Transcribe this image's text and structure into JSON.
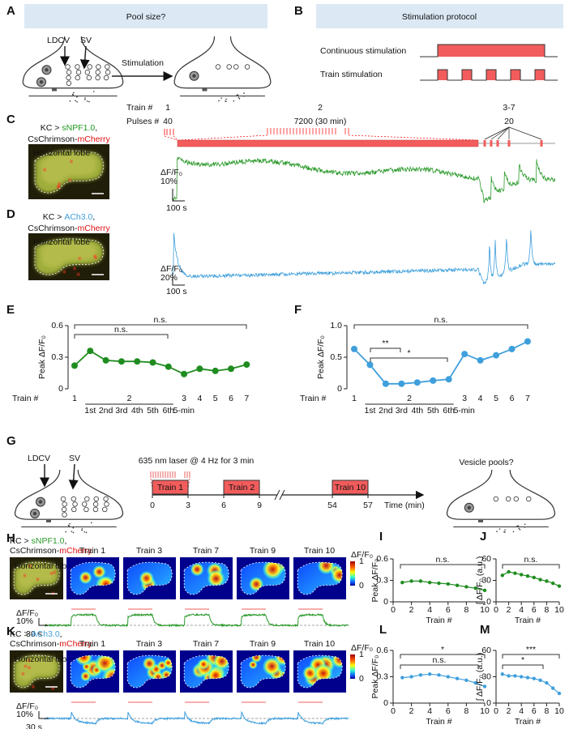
{
  "panel_a": {
    "label": "A",
    "title": "Pool size?",
    "ldcv": "LDCV",
    "sv": "SV",
    "arrow_label": "Stimulation"
  },
  "panel_b": {
    "label": "B",
    "title": "Stimulation protocol",
    "continuous": "Continuous stimulation",
    "train": "Train stimulation"
  },
  "panel_c": {
    "label": "C",
    "train_header": "Train #",
    "pulses_header": "Pulses #",
    "trains": [
      "1",
      "2",
      "3-7"
    ],
    "pulses": [
      "40",
      "7200 (30 min)",
      "20"
    ],
    "genotype": {
      "driver": "KC >",
      "sensor": "sNPF1.0",
      "sep": ",",
      "effector": "CsChrimson-",
      "tag": "mCherry"
    },
    "region": "Horizontal lobe",
    "scale_y_label": "ΔF/F₀",
    "scale_y": "10%",
    "scale_x": "100 s"
  },
  "panel_d": {
    "label": "D",
    "genotype": {
      "driver": "KC >",
      "sensor": "ACh3.0",
      "sep": ",",
      "effector": "CsChrimson-",
      "tag": "mCherry"
    },
    "region": "Horizontal lobe",
    "scale_y_label": "ΔF/F₀",
    "scale_y": "20%",
    "scale_x": "100 s"
  },
  "panel_g": {
    "label": "G",
    "ldcv": "LDCV",
    "sv": "SV",
    "laser": "635 nm laser @ 4 Hz for 3 min",
    "trains": [
      "Train 1",
      "Train 2",
      "Train 10"
    ],
    "time_ticks": [
      0,
      3,
      6,
      9,
      54,
      57
    ],
    "time_label": "Time (min)",
    "question": "Vesicle pools?"
  },
  "panel_h": {
    "label": "H",
    "genotype": {
      "driver": "KC >",
      "sensor": "sNPF1.0",
      "sep": ",",
      "effector": "CsChrimson-",
      "tag": "mCherry"
    },
    "region": "Horizontal lobe",
    "images": [
      "Train 1",
      "Train 3",
      "Train 7",
      "Train 9",
      "Train 10"
    ],
    "colorbar_label": "ΔF/F₀",
    "colorbar_ticks": [
      0,
      1
    ],
    "scale_y_label": "ΔF/F₀",
    "scale_y": "10%",
    "scale_x": "30 s"
  },
  "panel_k": {
    "label": "K",
    "genotype": {
      "driver": "KC >",
      "sensor": "ACh3.0",
      "sep": ",",
      "effector": "CsChrimson-",
      "tag": "mCherry"
    },
    "region": "Horizontal lobe",
    "images": [
      "Train 1",
      "Train 3",
      "Train 7",
      "Train 9",
      "Train 10"
    ],
    "colorbar_label": "ΔF/F₀",
    "colorbar_ticks": [
      0,
      1
    ],
    "scale_y_label": "ΔF/F₀",
    "scale_y": "10%",
    "scale_x": "30 s"
  },
  "chart_data": [
    {
      "type": "line",
      "panel_label": "E",
      "ylabel": "Peak ΔF/F₀",
      "xlabel": "Train #",
      "categories": [
        "1",
        "1st",
        "2nd",
        "3rd",
        "4th",
        "5th",
        "6th",
        "3",
        "4",
        "5",
        "6",
        "7"
      ],
      "group_label": "2",
      "gap_label": "5-min",
      "values": [
        0.22,
        0.36,
        0.27,
        0.26,
        0.26,
        0.25,
        0.21,
        0.14,
        0.19,
        0.17,
        0.19,
        0.23
      ],
      "color": "#1f8c1f",
      "ylim": [
        0,
        0.6
      ],
      "yticks": [
        0,
        0.3,
        0.6
      ],
      "annotations": [
        "n.s.",
        "n.s."
      ]
    },
    {
      "type": "line",
      "panel_label": "F",
      "ylabel": "Peak ΔF/F₀",
      "xlabel": "Train #",
      "categories": [
        "1",
        "1st",
        "2nd",
        "3rd",
        "4th",
        "5th",
        "6th",
        "3",
        "4",
        "5",
        "6",
        "7"
      ],
      "group_label": "2",
      "gap_label": "5-min",
      "values": [
        0.63,
        0.38,
        0.08,
        0.08,
        0.1,
        0.13,
        0.15,
        0.55,
        0.45,
        0.53,
        0.63,
        0.75
      ],
      "color": "#3f9fdc",
      "ylim": [
        0,
        1
      ],
      "yticks": [
        0,
        0.5,
        {
          "value": 1,
          "label": "1.0"
        }
      ],
      "annotations": [
        "n.s.",
        "**",
        "*"
      ]
    },
    {
      "type": "line",
      "panel_label": "I",
      "ylabel": "Peak ΔF/F₀",
      "xlabel": "Train #",
      "x": [
        1,
        2,
        3,
        4,
        5,
        6,
        7,
        8,
        9,
        10
      ],
      "values": [
        0.27,
        0.29,
        0.29,
        0.27,
        0.26,
        0.25,
        0.23,
        0.21,
        0.19,
        0.16
      ],
      "color": "#1f8c1f",
      "xlim": [
        0,
        10
      ],
      "xticks": [
        0,
        2,
        4,
        6,
        8,
        10
      ],
      "ylim": [
        0,
        0.6
      ],
      "yticks": [
        0,
        0.3,
        0.6
      ],
      "annotations": [
        "n.s."
      ]
    },
    {
      "type": "line",
      "panel_label": "J",
      "ylabel": "∫ ΔF/F₀ (a.u.)",
      "xlabel": "Train #",
      "x": [
        1,
        2,
        3,
        4,
        5,
        6,
        7,
        8,
        9,
        10
      ],
      "values": [
        37,
        42,
        40,
        38,
        36,
        34,
        31,
        29,
        26,
        22
      ],
      "color": "#1f8c1f",
      "xlim": [
        0,
        10
      ],
      "xticks": [
        0,
        2,
        4,
        6,
        8,
        10
      ],
      "ylim": [
        0,
        60
      ],
      "yticks": [
        0,
        30,
        60
      ],
      "annotations": [
        "n.s."
      ]
    },
    {
      "type": "line",
      "panel_label": "L",
      "ylabel": "Peak ΔF/F₀",
      "xlabel": "Train #",
      "x": [
        1,
        2,
        3,
        4,
        5,
        6,
        7,
        8,
        9,
        10
      ],
      "values": [
        0.29,
        0.3,
        0.32,
        0.33,
        0.32,
        0.3,
        0.28,
        0.26,
        0.23,
        0.19
      ],
      "color": "#3f9fdc",
      "xlim": [
        0,
        10
      ],
      "xticks": [
        0,
        2,
        4,
        6,
        8,
        10
      ],
      "ylim": [
        0,
        0.6
      ],
      "yticks": [
        0,
        0.3,
        0.6
      ],
      "annotations": [
        "n.s.",
        "*"
      ]
    },
    {
      "type": "line",
      "panel_label": "M",
      "ylabel": "∫ ΔF/F₀ (a.u.)",
      "xlabel": "Train #",
      "x": [
        1,
        2,
        3,
        4,
        5,
        6,
        7,
        8,
        9,
        10
      ],
      "values": [
        33,
        31,
        31,
        30,
        29,
        28,
        26,
        23,
        17,
        11
      ],
      "color": "#3f9fdc",
      "xlim": [
        0,
        10
      ],
      "xticks": [
        0,
        2,
        4,
        6,
        8,
        10
      ],
      "ylim": [
        0,
        60
      ],
      "yticks": [
        0,
        30,
        60
      ],
      "annotations": [
        "*",
        "***"
      ]
    }
  ]
}
